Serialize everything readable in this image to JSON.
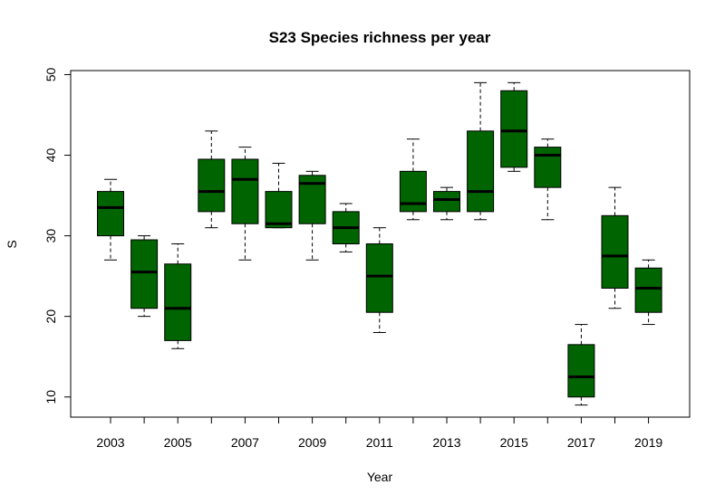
{
  "chart_data": {
    "type": "box",
    "title": "S23 Species richness per year",
    "xlabel": "Year",
    "ylabel": "S",
    "ylim": [
      7.5,
      50.5
    ],
    "yticks": [
      10,
      20,
      30,
      40,
      50
    ],
    "box_color": "#006400",
    "categories": [
      "2003",
      "2004",
      "2005",
      "2006",
      "2007",
      "2008",
      "2009",
      "2010",
      "2011",
      "2012",
      "2013",
      "2014",
      "2015",
      "2016",
      "2017",
      "2018",
      "2019"
    ],
    "x_tick_labels": [
      "2003",
      "",
      "2005",
      "",
      "2007",
      "",
      "2009",
      "",
      "2011",
      "",
      "2013",
      "",
      "2015",
      "",
      "2017",
      "",
      "2019"
    ],
    "boxes": [
      {
        "year": "2003",
        "min": 27,
        "q1": 30,
        "median": 33.5,
        "q3": 35.5,
        "max": 37
      },
      {
        "year": "2004",
        "min": 20,
        "q1": 21,
        "median": 25.5,
        "q3": 29.5,
        "max": 30
      },
      {
        "year": "2005",
        "min": 16,
        "q1": 17,
        "median": 21,
        "q3": 26.5,
        "max": 29
      },
      {
        "year": "2006",
        "min": 31,
        "q1": 33,
        "median": 35.5,
        "q3": 39.5,
        "max": 43
      },
      {
        "year": "2007",
        "min": 27,
        "q1": 31.5,
        "median": 37,
        "q3": 39.5,
        "max": 41
      },
      {
        "year": "2008",
        "min": 31,
        "q1": 31,
        "median": 31.5,
        "q3": 35.5,
        "max": 39
      },
      {
        "year": "2009",
        "min": 27,
        "q1": 31.5,
        "median": 36.5,
        "q3": 37.5,
        "max": 38
      },
      {
        "year": "2010",
        "min": 28,
        "q1": 29,
        "median": 31,
        "q3": 33,
        "max": 34
      },
      {
        "year": "2011",
        "min": 18,
        "q1": 20.5,
        "median": 25,
        "q3": 29,
        "max": 31
      },
      {
        "year": "2012",
        "min": 32,
        "q1": 33,
        "median": 34,
        "q3": 38,
        "max": 42
      },
      {
        "year": "2013",
        "min": 32,
        "q1": 33,
        "median": 34.5,
        "q3": 35.5,
        "max": 36
      },
      {
        "year": "2014",
        "min": 32,
        "q1": 33,
        "median": 35.5,
        "q3": 43,
        "max": 49
      },
      {
        "year": "2015",
        "min": 38,
        "q1": 38.5,
        "median": 43,
        "q3": 48,
        "max": 49
      },
      {
        "year": "2016",
        "min": 32,
        "q1": 36,
        "median": 40,
        "q3": 41,
        "max": 42
      },
      {
        "year": "2017",
        "min": 9,
        "q1": 10,
        "median": 12.5,
        "q3": 16.5,
        "max": 19
      },
      {
        "year": "2018",
        "min": 21,
        "q1": 23.5,
        "median": 27.5,
        "q3": 32.5,
        "max": 36
      },
      {
        "year": "2019",
        "min": 19,
        "q1": 20.5,
        "median": 23.5,
        "q3": 26,
        "max": 27
      }
    ],
    "legend": "none",
    "grid": false
  }
}
